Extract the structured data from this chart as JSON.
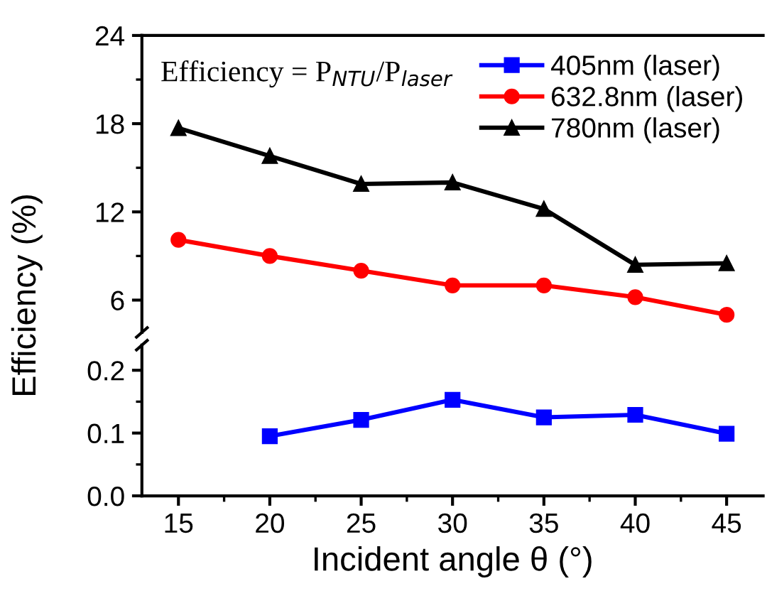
{
  "chart_data": [
    {
      "type": "line",
      "ylabel": "Efficiency (%)",
      "annotations": [
        "Efficiency = P$_{NTU}$/P$_{laser}$"
      ],
      "x": [
        15,
        20,
        25,
        30,
        35,
        40,
        45
      ],
      "xlim": [
        13,
        47
      ],
      "xticks": [
        15,
        20,
        25,
        30,
        35,
        40,
        45
      ],
      "ylim": [
        3.8,
        24
      ],
      "yticks": [
        6,
        12,
        18,
        24
      ],
      "tick_labels": "y",
      "grid": false,
      "legend": "top right",
      "line_style": "solid",
      "series": [
        {
          "name": "632.8nm (laser)",
          "color": "#ff0000",
          "marker": "circle",
          "values": [
            10.1,
            9.0,
            8.0,
            7.0,
            7.0,
            6.2,
            5.0
          ]
        },
        {
          "name": "780nm (laser)",
          "color": "#000000",
          "marker": "triangle",
          "values": [
            17.7,
            15.8,
            13.9,
            14.0,
            12.2,
            8.4,
            8.5
          ]
        }
      ]
    },
    {
      "type": "line",
      "xlabel": "Incident angle θ (°)",
      "xlim": [
        13,
        47
      ],
      "xticks": [
        15,
        20,
        25,
        30,
        35,
        40,
        45
      ],
      "ylim": [
        0,
        0.24
      ],
      "yticks": [
        {
          "value": 0,
          "label": "0.0"
        },
        0.1,
        0.2
      ],
      "grid": false,
      "line_style": "solid",
      "series": [
        {
          "name": "405nm (laser)",
          "color": "#0000ff",
          "marker": "square",
          "x": [
            20,
            25,
            30,
            35,
            40,
            45
          ],
          "values": [
            0.095,
            0.121,
            0.153,
            0.125,
            0.129,
            0.099
          ]
        }
      ]
    }
  ]
}
